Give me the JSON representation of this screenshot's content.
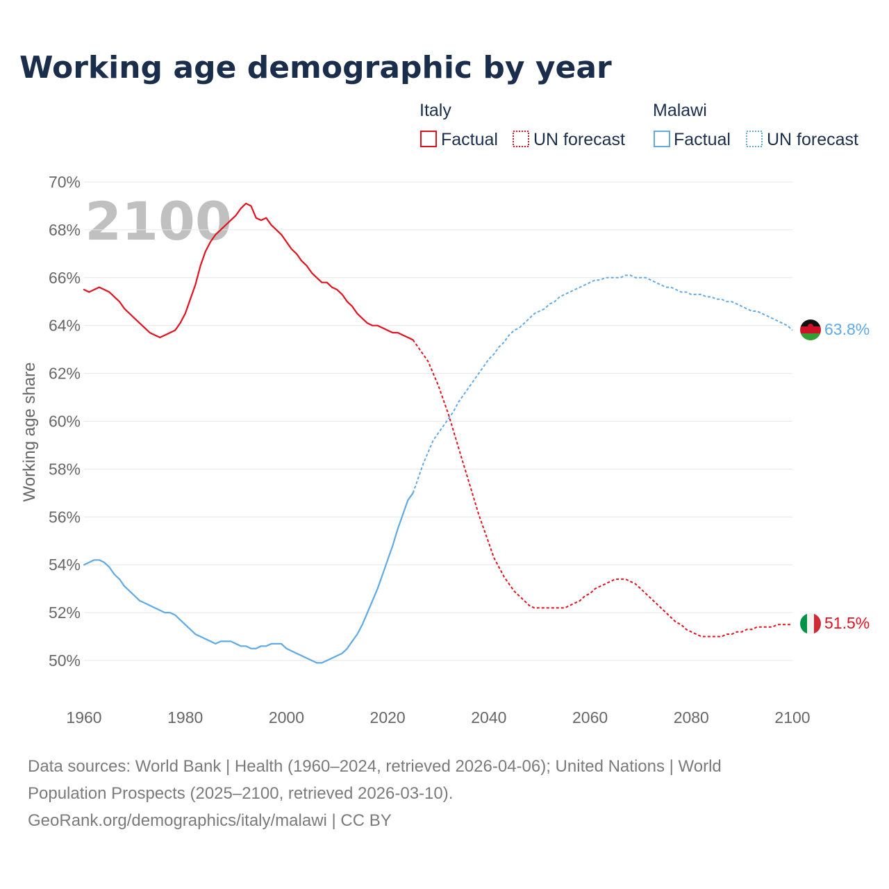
{
  "chart_data": {
    "type": "line",
    "title": "Working age demographic by year",
    "ylabel": "Working age share",
    "xlabel": "",
    "xlim": [
      1960,
      2100
    ],
    "ylim": [
      49,
      70
    ],
    "x_ticks": [
      1960,
      1980,
      2000,
      2020,
      2040,
      2060,
      2080,
      2100
    ],
    "y_ticks": [
      50,
      52,
      54,
      56,
      58,
      60,
      62,
      64,
      66,
      68,
      70
    ],
    "y_tick_labels": [
      "50%",
      "52%",
      "54%",
      "56%",
      "58%",
      "60%",
      "62%",
      "64%",
      "66%",
      "68%",
      "70%"
    ],
    "current_year": "2100",
    "legend": {
      "groups": [
        {
          "name": "Italy",
          "factual_label": "Factual",
          "forecast_label": "UN forecast",
          "color": "#e3101d"
        },
        {
          "name": "Malawi",
          "factual_label": "Factual",
          "forecast_label": "UN forecast",
          "color": "#5ea9e6"
        }
      ]
    },
    "series": [
      {
        "name": "Italy",
        "color": "#e3101d",
        "end_label": "51.5%",
        "factual": {
          "x": [
            1960,
            1961,
            1962,
            1963,
            1964,
            1965,
            1966,
            1967,
            1968,
            1969,
            1970,
            1971,
            1972,
            1973,
            1974,
            1975,
            1976,
            1977,
            1978,
            1979,
            1980,
            1981,
            1982,
            1983,
            1984,
            1985,
            1986,
            1987,
            1988,
            1989,
            1990,
            1991,
            1992,
            1993,
            1994,
            1995,
            1996,
            1997,
            1998,
            1999,
            2000,
            2001,
            2002,
            2003,
            2004,
            2005,
            2006,
            2007,
            2008,
            2009,
            2010,
            2011,
            2012,
            2013,
            2014,
            2015,
            2016,
            2017,
            2018,
            2019,
            2020,
            2021,
            2022,
            2023,
            2024,
            2025
          ],
          "y": [
            65.5,
            65.4,
            65.5,
            65.6,
            65.5,
            65.4,
            65.2,
            65.0,
            64.7,
            64.5,
            64.3,
            64.1,
            63.9,
            63.7,
            63.6,
            63.5,
            63.6,
            63.7,
            63.8,
            64.1,
            64.5,
            65.1,
            65.7,
            66.5,
            67.1,
            67.5,
            67.8,
            68.0,
            68.2,
            68.4,
            68.6,
            68.9,
            69.1,
            69.0,
            68.5,
            68.4,
            68.5,
            68.2,
            68.0,
            67.8,
            67.5,
            67.2,
            67.0,
            66.7,
            66.5,
            66.2,
            66.0,
            65.8,
            65.8,
            65.6,
            65.5,
            65.3,
            65.0,
            64.8,
            64.5,
            64.3,
            64.1,
            64.0,
            64.0,
            63.9,
            63.8,
            63.7,
            63.7,
            63.6,
            63.5,
            63.4
          ]
        },
        "forecast": {
          "x": [
            2025,
            2026,
            2027,
            2028,
            2029,
            2030,
            2031,
            2032,
            2033,
            2034,
            2035,
            2036,
            2037,
            2038,
            2039,
            2040,
            2041,
            2042,
            2043,
            2044,
            2045,
            2046,
            2047,
            2048,
            2049,
            2050,
            2051,
            2052,
            2053,
            2054,
            2055,
            2056,
            2057,
            2058,
            2059,
            2060,
            2061,
            2062,
            2063,
            2064,
            2065,
            2066,
            2067,
            2068,
            2069,
            2070,
            2071,
            2072,
            2073,
            2074,
            2075,
            2076,
            2077,
            2078,
            2079,
            2080,
            2081,
            2082,
            2083,
            2084,
            2085,
            2086,
            2087,
            2088,
            2089,
            2090,
            2091,
            2092,
            2093,
            2094,
            2095,
            2096,
            2097,
            2098,
            2099,
            2100
          ],
          "y": [
            63.4,
            63.1,
            62.8,
            62.5,
            62.0,
            61.5,
            60.9,
            60.3,
            59.6,
            58.9,
            58.2,
            57.5,
            56.8,
            56.1,
            55.5,
            54.9,
            54.3,
            53.9,
            53.5,
            53.2,
            52.9,
            52.7,
            52.5,
            52.3,
            52.2,
            52.2,
            52.2,
            52.2,
            52.2,
            52.2,
            52.2,
            52.3,
            52.4,
            52.5,
            52.7,
            52.8,
            53.0,
            53.1,
            53.2,
            53.3,
            53.4,
            53.4,
            53.4,
            53.3,
            53.2,
            53.0,
            52.8,
            52.6,
            52.4,
            52.2,
            52.0,
            51.8,
            51.6,
            51.5,
            51.3,
            51.2,
            51.1,
            51.0,
            51.0,
            51.0,
            51.0,
            51.0,
            51.1,
            51.1,
            51.2,
            51.2,
            51.3,
            51.3,
            51.4,
            51.4,
            51.4,
            51.4,
            51.5,
            51.5,
            51.5,
            51.5
          ]
        }
      },
      {
        "name": "Malawi",
        "color": "#5ea9e6",
        "end_label": "63.8%",
        "factual": {
          "x": [
            1960,
            1961,
            1962,
            1963,
            1964,
            1965,
            1966,
            1967,
            1968,
            1969,
            1970,
            1971,
            1972,
            1973,
            1974,
            1975,
            1976,
            1977,
            1978,
            1979,
            1980,
            1981,
            1982,
            1983,
            1984,
            1985,
            1986,
            1987,
            1988,
            1989,
            1990,
            1991,
            1992,
            1993,
            1994,
            1995,
            1996,
            1997,
            1998,
            1999,
            2000,
            2001,
            2002,
            2003,
            2004,
            2005,
            2006,
            2007,
            2008,
            2009,
            2010,
            2011,
            2012,
            2013,
            2014,
            2015,
            2016,
            2017,
            2018,
            2019,
            2020,
            2021,
            2022,
            2023,
            2024,
            2025
          ],
          "y": [
            54.0,
            54.1,
            54.2,
            54.2,
            54.1,
            53.9,
            53.6,
            53.4,
            53.1,
            52.9,
            52.7,
            52.5,
            52.4,
            52.3,
            52.2,
            52.1,
            52.0,
            52.0,
            51.9,
            51.7,
            51.5,
            51.3,
            51.1,
            51.0,
            50.9,
            50.8,
            50.7,
            50.8,
            50.8,
            50.8,
            50.7,
            50.6,
            50.6,
            50.5,
            50.5,
            50.6,
            50.6,
            50.7,
            50.7,
            50.7,
            50.5,
            50.4,
            50.3,
            50.2,
            50.1,
            50.0,
            49.9,
            49.9,
            50.0,
            50.1,
            50.2,
            50.3,
            50.5,
            50.8,
            51.1,
            51.5,
            52.0,
            52.5,
            53.0,
            53.6,
            54.2,
            54.8,
            55.5,
            56.1,
            56.7,
            57.0
          ]
        },
        "forecast": {
          "x": [
            2025,
            2026,
            2027,
            2028,
            2029,
            2030,
            2031,
            2032,
            2033,
            2034,
            2035,
            2036,
            2037,
            2038,
            2039,
            2040,
            2041,
            2042,
            2043,
            2044,
            2045,
            2046,
            2047,
            2048,
            2049,
            2050,
            2051,
            2052,
            2053,
            2054,
            2055,
            2056,
            2057,
            2058,
            2059,
            2060,
            2061,
            2062,
            2063,
            2064,
            2065,
            2066,
            2067,
            2068,
            2069,
            2070,
            2071,
            2072,
            2073,
            2074,
            2075,
            2076,
            2077,
            2078,
            2079,
            2080,
            2081,
            2082,
            2083,
            2084,
            2085,
            2086,
            2087,
            2088,
            2089,
            2090,
            2091,
            2092,
            2093,
            2094,
            2095,
            2096,
            2097,
            2098,
            2099,
            2100
          ],
          "y": [
            57.0,
            57.6,
            58.2,
            58.7,
            59.2,
            59.5,
            59.8,
            60.1,
            60.4,
            60.8,
            61.1,
            61.4,
            61.7,
            62.0,
            62.3,
            62.6,
            62.8,
            63.1,
            63.3,
            63.6,
            63.8,
            63.9,
            64.1,
            64.3,
            64.5,
            64.6,
            64.7,
            64.9,
            65.0,
            65.2,
            65.3,
            65.4,
            65.5,
            65.6,
            65.7,
            65.8,
            65.9,
            65.9,
            66.0,
            66.0,
            66.0,
            66.0,
            66.1,
            66.1,
            66.0,
            66.0,
            66.0,
            65.9,
            65.8,
            65.7,
            65.6,
            65.6,
            65.5,
            65.4,
            65.4,
            65.3,
            65.3,
            65.3,
            65.2,
            65.2,
            65.1,
            65.1,
            65.0,
            65.0,
            64.9,
            64.8,
            64.7,
            64.6,
            64.6,
            64.5,
            64.4,
            64.3,
            64.2,
            64.1,
            64.0,
            63.8
          ]
        }
      }
    ]
  },
  "footer": {
    "line1": "Data sources: World Bank | Health (1960–2024, retrieved 2026-04-06); United Nations | World",
    "line2": "Population Prospects (2025–2100, retrieved 2026-03-10).",
    "line3": "GeoRank.org/demographics/italy/malawi | CC BY"
  }
}
